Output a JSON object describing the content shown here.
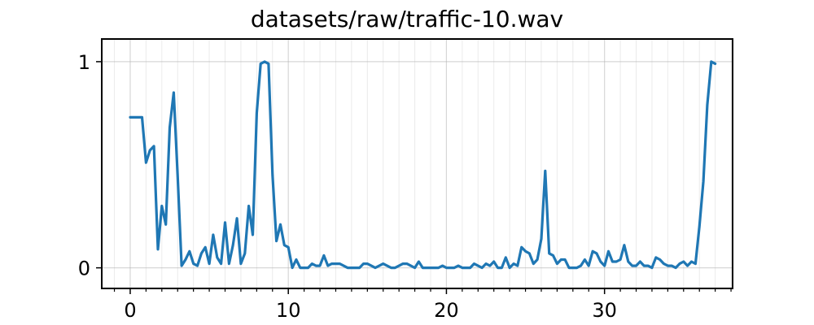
{
  "chart_data": {
    "type": "line",
    "title": "datasets/raw/traffic-10.wav",
    "xlabel": "",
    "ylabel": "",
    "xlim": [
      -1.8,
      38.1
    ],
    "ylim": [
      -0.1,
      1.11
    ],
    "xticks": [
      0,
      10,
      20,
      30
    ],
    "xtick_labels": [
      "0",
      "10",
      "20",
      "30"
    ],
    "yticks": [
      0,
      1
    ],
    "ytick_labels": [
      "0",
      "1"
    ],
    "x_minor_step": 1,
    "grid": true,
    "series": [
      {
        "color": "#1f77b4",
        "x": [
          0,
          0.25,
          0.5,
          0.75,
          1,
          1.25,
          1.5,
          1.75,
          2,
          2.25,
          2.5,
          2.75,
          3,
          3.25,
          3.5,
          3.75,
          4,
          4.25,
          4.5,
          4.75,
          5,
          5.25,
          5.5,
          5.75,
          6,
          6.25,
          6.5,
          6.75,
          7,
          7.25,
          7.5,
          7.75,
          8,
          8.25,
          8.5,
          8.75,
          9,
          9.25,
          9.5,
          9.75,
          10,
          10.25,
          10.5,
          10.75,
          11,
          11.25,
          11.5,
          11.75,
          12,
          12.25,
          12.5,
          12.75,
          13,
          13.25,
          13.5,
          13.75,
          14,
          14.25,
          14.5,
          14.75,
          15,
          15.25,
          15.5,
          15.75,
          16,
          16.25,
          16.5,
          16.75,
          17,
          17.25,
          17.5,
          17.75,
          18,
          18.25,
          18.5,
          18.75,
          19,
          19.25,
          19.5,
          19.75,
          20,
          20.25,
          20.5,
          20.75,
          21,
          21.25,
          21.5,
          21.75,
          22,
          22.25,
          22.5,
          22.75,
          23,
          23.25,
          23.5,
          23.75,
          24,
          24.25,
          24.5,
          24.75,
          25,
          25.25,
          25.5,
          25.75,
          26,
          26.25,
          26.5,
          26.75,
          27,
          27.25,
          27.5,
          27.75,
          28,
          28.25,
          28.5,
          28.75,
          29,
          29.25,
          29.5,
          29.75,
          30,
          30.25,
          30.5,
          30.75,
          31,
          31.25,
          31.5,
          31.75,
          32,
          32.25,
          32.5,
          32.75,
          33,
          33.25,
          33.5,
          33.75,
          34,
          34.25,
          34.5,
          34.75,
          35,
          35.25,
          35.5,
          35.75,
          36,
          36.25,
          36.5,
          36.75,
          37
        ],
        "y": [
          0.73,
          0.73,
          0.73,
          0.73,
          0.51,
          0.57,
          0.59,
          0.09,
          0.3,
          0.21,
          0.68,
          0.85,
          0.45,
          0.01,
          0.04,
          0.08,
          0.02,
          0.01,
          0.07,
          0.1,
          0.02,
          0.16,
          0.05,
          0.02,
          0.22,
          0.02,
          0.11,
          0.24,
          0.02,
          0.07,
          0.3,
          0.16,
          0.75,
          0.99,
          1.0,
          0.99,
          0.45,
          0.13,
          0.21,
          0.11,
          0.1,
          0.0,
          0.04,
          0.0,
          0.0,
          0.0,
          0.02,
          0.01,
          0.01,
          0.06,
          0.01,
          0.02,
          0.02,
          0.02,
          0.01,
          0.0,
          0.0,
          0.0,
          0.0,
          0.02,
          0.02,
          0.01,
          0.0,
          0.01,
          0.02,
          0.01,
          0.0,
          0.0,
          0.01,
          0.02,
          0.02,
          0.01,
          0.0,
          0.03,
          0.0,
          0.0,
          0.0,
          0.0,
          0.0,
          0.01,
          0.0,
          0.0,
          0.0,
          0.01,
          0.0,
          0.0,
          0.0,
          0.02,
          0.01,
          0.0,
          0.02,
          0.01,
          0.03,
          0.0,
          0.0,
          0.05,
          0.0,
          0.02,
          0.01,
          0.1,
          0.08,
          0.07,
          0.02,
          0.04,
          0.14,
          0.47,
          0.07,
          0.06,
          0.02,
          0.04,
          0.04,
          0.0,
          0.0,
          0.0,
          0.01,
          0.04,
          0.01,
          0.08,
          0.07,
          0.03,
          0.01,
          0.08,
          0.03,
          0.03,
          0.04,
          0.11,
          0.03,
          0.01,
          0.01,
          0.03,
          0.01,
          0.01,
          0.0,
          0.05,
          0.04,
          0.02,
          0.01,
          0.01,
          0.0,
          0.02,
          0.03,
          0.01,
          0.03,
          0.02,
          0.2,
          0.42,
          0.79,
          1.0,
          0.99
        ]
      }
    ]
  }
}
